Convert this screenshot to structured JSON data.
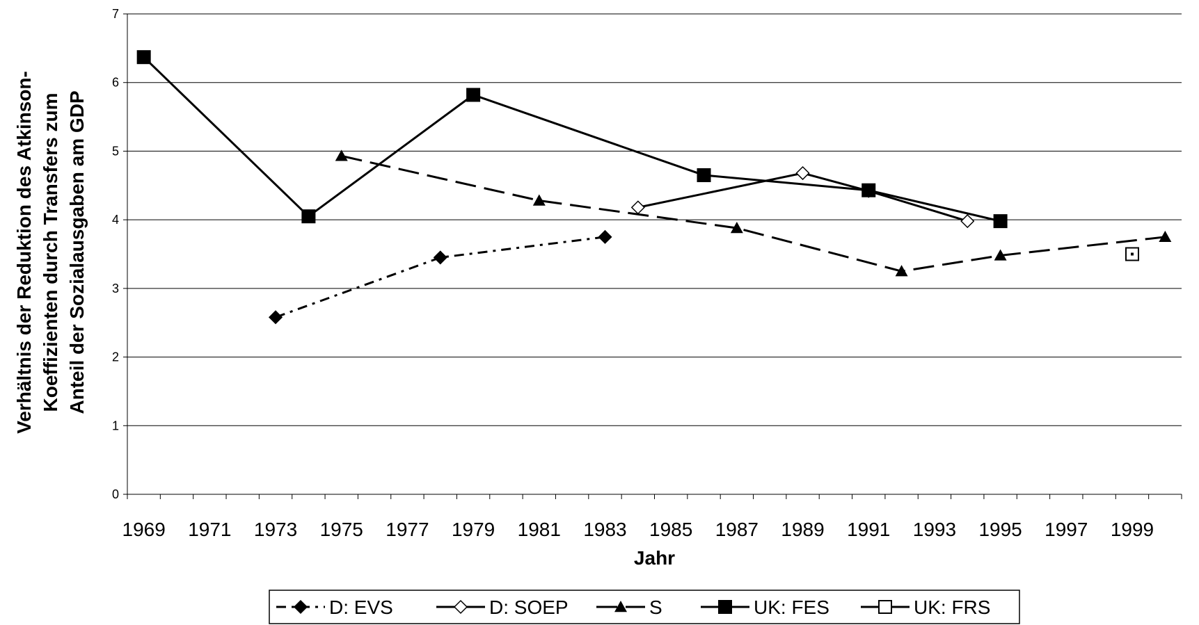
{
  "chart_data": {
    "type": "line",
    "y_label": [
      "Verhältnis der Reduktion des Atkinson-",
      "Koeffizienten durch Transfers zum",
      "Anteil der Sozialausgaben am GDP"
    ],
    "x_label": "Jahr",
    "xlim": [
      1968.5,
      2000.5
    ],
    "xticks": [
      1969,
      1971,
      1973,
      1975,
      1977,
      1979,
      1981,
      1983,
      1985,
      1987,
      1989,
      1991,
      1993,
      1995,
      1997,
      1999
    ],
    "ylim": [
      0,
      7
    ],
    "yticks": [
      0,
      1,
      2,
      3,
      4,
      5,
      6,
      7
    ],
    "grid": true,
    "series": [
      {
        "name": "D: EVS",
        "color": "#000000",
        "x": [
          1973,
          1978,
          1983
        ],
        "values": [
          2.58,
          3.45,
          3.75
        ]
      },
      {
        "name": "D: SOEP",
        "color": "#000000",
        "x": [
          1984,
          1989,
          1991,
          1994
        ],
        "values": [
          4.18,
          4.68,
          4.42,
          3.98
        ]
      },
      {
        "name": "S",
        "color": "#000000",
        "x": [
          1975,
          1981,
          1987,
          1992,
          1995,
          2000
        ],
        "values": [
          4.93,
          4.28,
          3.88,
          3.25,
          3.48,
          3.75
        ]
      },
      {
        "name": "UK: FES",
        "color": "#000000",
        "x": [
          1969,
          1974,
          1979,
          1986,
          1991,
          1995
        ],
        "values": [
          6.37,
          4.05,
          5.82,
          4.65,
          4.43,
          3.98
        ]
      },
      {
        "name": "UK: FRS",
        "color": "#000000",
        "x": [
          1999
        ],
        "values": [
          3.5
        ]
      }
    ]
  }
}
